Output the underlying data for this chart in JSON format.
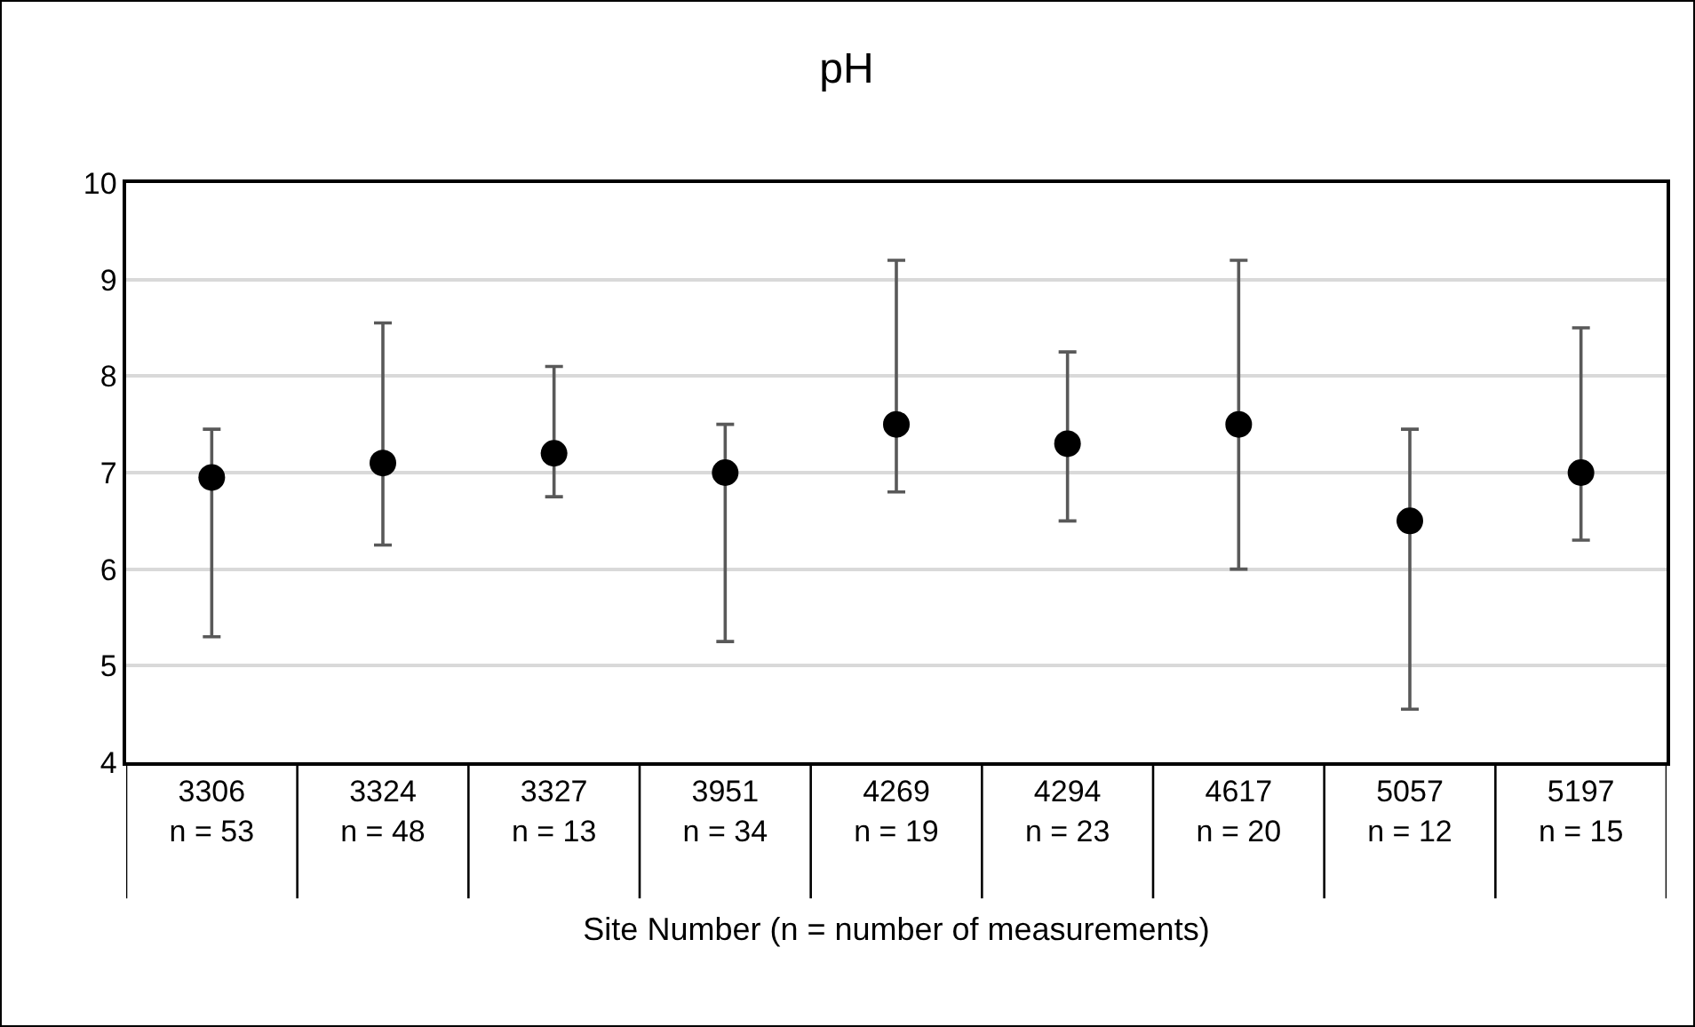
{
  "chart_data": {
    "type": "scatter",
    "title": "pH",
    "xlabel": "Site Number (n = number of measurements)",
    "categories": [
      "3306\nn = 53",
      "3324\nn = 48",
      "3327\nn = 13",
      "3951\nn = 34",
      "4269\nn = 19",
      "4294\nn = 23",
      "4617\nn = 20",
      "5057\nn = 12",
      "5197\nn = 15"
    ],
    "series": [
      {
        "color": "#000000",
        "values": [
          6.95,
          7.1,
          7.2,
          7.0,
          7.5,
          7.3,
          7.5,
          6.5,
          7.0
        ],
        "errors": [
          [
            5.3,
            7.45
          ],
          [
            6.25,
            8.55
          ],
          [
            6.75,
            8.1
          ],
          [
            5.25,
            7.5
          ],
          [
            6.8,
            9.2
          ],
          [
            6.5,
            8.25
          ],
          [
            6.0,
            9.2
          ],
          [
            4.55,
            7.45
          ],
          [
            6.3,
            8.5
          ]
        ]
      }
    ],
    "ylim": [
      4,
      10
    ],
    "yticks": [
      4,
      5,
      6,
      7,
      8,
      9,
      10
    ],
    "grid": "y",
    "marker": "circle"
  }
}
